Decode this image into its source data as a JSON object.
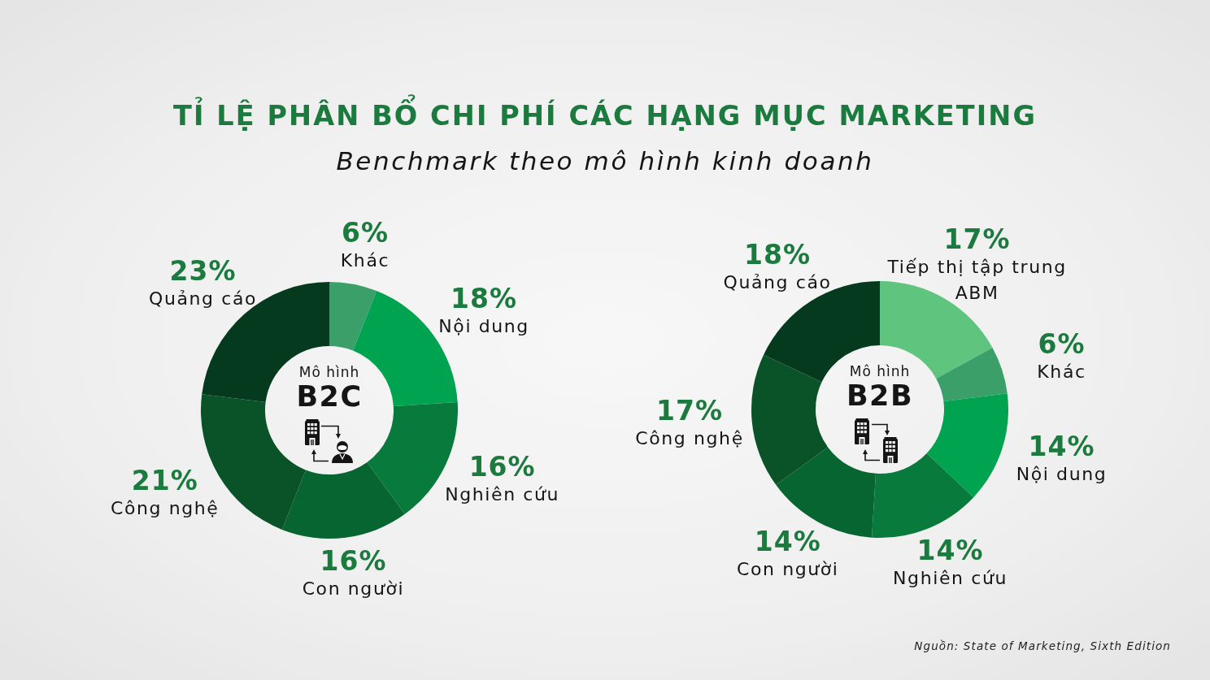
{
  "chart_data": [
    {
      "type": "donut",
      "title": "TỈ LỆ PHÂN BỔ CHI PHÍ CÁC HẠNG MỤC MARKETING",
      "subtitle": "Benchmark theo mô hình kinh doanh",
      "categories": [
        "Khác",
        "Nội dung",
        "Nghiên cứu",
        "Con người",
        "Công nghệ",
        "Quảng cáo"
      ],
      "values": [
        6,
        18,
        16,
        16,
        21,
        23
      ],
      "value_labels": [
        "6%",
        "18%",
        "16%",
        "16%",
        "21%",
        "23%"
      ],
      "colors": [
        "#3a9f68",
        "#00a450",
        "#087a3c",
        "#066530",
        "#0a5228",
        "#053a1f"
      ],
      "annotations": [
        "Mô hình",
        "B2C"
      ]
    },
    {
      "type": "donut",
      "categories": [
        "Tiếp thị tập trung ABM",
        "Khác",
        "Nội dung",
        "Nghiên cứu",
        "Con người",
        "Công nghệ",
        "Quảng cáo"
      ],
      "values": [
        17,
        6,
        14,
        14,
        14,
        17,
        18
      ],
      "value_labels": [
        "17%",
        "6%",
        "14%",
        "14%",
        "14%",
        "17%",
        "18%"
      ],
      "colors": [
        "#5ec47e",
        "#3a9f68",
        "#00a450",
        "#087a3c",
        "#066530",
        "#0a5228",
        "#053a1f"
      ],
      "annotations": [
        "Mô hình",
        "B2B",
        "Nguồn: State of Marketing, Sixth Edition"
      ]
    }
  ]
}
